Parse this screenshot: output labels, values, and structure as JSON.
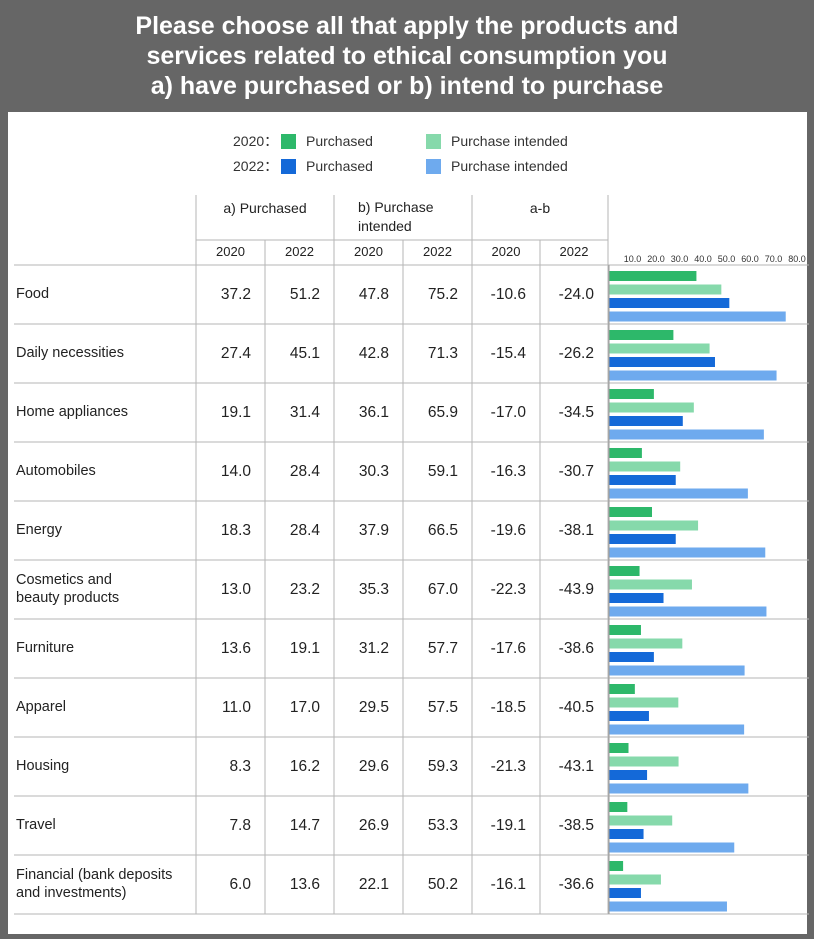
{
  "title_lines": [
    "Please choose all that apply the products and",
    "services related to ethical consumption you",
    "a) have purchased or b) intend to purchase"
  ],
  "legend": {
    "year_2020": "2020：",
    "year_2022": "2022：",
    "purchased": "Purchased",
    "intended": "Purchase intended"
  },
  "colors": {
    "p2020": "#2db86a",
    "i2020": "#86d9ab",
    "p2022": "#1469d8",
    "i2022": "#6eaaee"
  },
  "table": {
    "group_headers": [
      "a) Purchased",
      "b) Purchase\nintended",
      "a-b"
    ],
    "year_headers": [
      "2020",
      "2022",
      "2020",
      "2022",
      "2020",
      "2022"
    ],
    "rows": [
      {
        "label": "Food",
        "values": [
          "37.2",
          "51.2",
          "47.8",
          "75.2",
          "-10.6",
          "-24.0"
        ]
      },
      {
        "label": "Daily necessities",
        "values": [
          "27.4",
          "45.1",
          "42.8",
          "71.3",
          "-15.4",
          "-26.2"
        ]
      },
      {
        "label": "Home appliances",
        "values": [
          "19.1",
          "31.4",
          "36.1",
          "65.9",
          "-17.0",
          "-34.5"
        ]
      },
      {
        "label": "Automobiles",
        "values": [
          "14.0",
          "28.4",
          "30.3",
          "59.1",
          "-16.3",
          "-30.7"
        ]
      },
      {
        "label": "Energy",
        "values": [
          "18.3",
          "28.4",
          "37.9",
          "66.5",
          "-19.6",
          "-38.1"
        ]
      },
      {
        "label": "Cosmetics and\nbeauty products",
        "values": [
          "13.0",
          "23.2",
          "35.3",
          "67.0",
          "-22.3",
          "-43.9"
        ]
      },
      {
        "label": "Furniture",
        "values": [
          "13.6",
          "19.1",
          "31.2",
          "57.7",
          "-17.6",
          "-38.6"
        ]
      },
      {
        "label": "Apparel",
        "values": [
          "11.0",
          "17.0",
          "29.5",
          "57.5",
          "-18.5",
          "-40.5"
        ]
      },
      {
        "label": "Housing",
        "values": [
          "8.3",
          "16.2",
          "29.6",
          "59.3",
          "-21.3",
          "-43.1"
        ]
      },
      {
        "label": "Travel",
        "values": [
          "7.8",
          "14.7",
          "26.9",
          "53.3",
          "-19.1",
          "-38.5"
        ]
      },
      {
        "label": "Financial (bank deposits\nand investments)",
        "values": [
          "6.0",
          "13.6",
          "22.1",
          "50.2",
          "-16.1",
          "-36.6"
        ]
      }
    ]
  },
  "chart_data": {
    "type": "bar",
    "orientation": "horizontal",
    "categories": [
      "Food",
      "Daily necessities",
      "Home appliances",
      "Automobiles",
      "Energy",
      "Cosmetics and beauty products",
      "Furniture",
      "Apparel",
      "Housing",
      "Travel",
      "Financial (bank deposits and investments)"
    ],
    "series": [
      {
        "name": "2020 Purchased",
        "values": [
          37.2,
          27.4,
          19.1,
          14.0,
          18.3,
          13.0,
          13.6,
          11.0,
          8.3,
          7.8,
          6.0
        ]
      },
      {
        "name": "2020 Purchase intended",
        "values": [
          47.8,
          42.8,
          36.1,
          30.3,
          37.9,
          35.3,
          31.2,
          29.5,
          29.6,
          26.9,
          22.1
        ]
      },
      {
        "name": "2022 Purchased",
        "values": [
          51.2,
          45.1,
          31.4,
          28.4,
          28.4,
          23.2,
          19.1,
          17.0,
          16.2,
          14.7,
          13.6
        ]
      },
      {
        "name": "2022 Purchase intended",
        "values": [
          75.2,
          71.3,
          65.9,
          59.1,
          66.5,
          67.0,
          57.7,
          57.5,
          59.3,
          53.3,
          50.2
        ]
      }
    ],
    "x_ticks": [
      "10.0",
      "20.0",
      "30.0",
      "40.0",
      "50.0",
      "60.0",
      "70.0",
      "80.0"
    ],
    "xlim": [
      0,
      80
    ],
    "grid": false
  }
}
